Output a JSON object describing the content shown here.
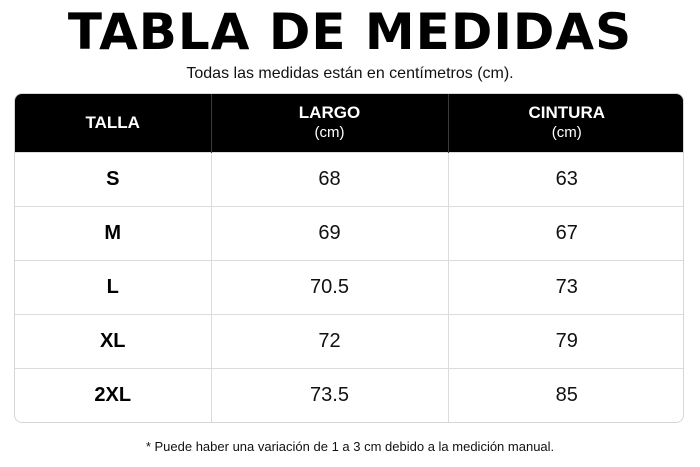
{
  "title": "TABLA DE MEDIDAS",
  "subtitle": "Todas las medidas están en centímetros (cm).",
  "table": {
    "headers": [
      {
        "label": "TALLA",
        "unit": ""
      },
      {
        "label": "LARGO",
        "unit": "(cm)"
      },
      {
        "label": "CINTURA",
        "unit": "(cm)"
      }
    ],
    "rows": [
      {
        "size": "S",
        "largo": "68",
        "cintura": "63"
      },
      {
        "size": "M",
        "largo": "69",
        "cintura": "67"
      },
      {
        "size": "L",
        "largo": "70.5",
        "cintura": "73"
      },
      {
        "size": "XL",
        "largo": "72",
        "cintura": "79"
      },
      {
        "size": "2XL",
        "largo": "73.5",
        "cintura": "85"
      }
    ]
  },
  "footnote": "* Puede haber una variación de 1 a 3 cm debido a la medición manual.",
  "colors": {
    "header_bg": "#000000",
    "header_text": "#ffffff",
    "border": "#dcdcdc"
  }
}
